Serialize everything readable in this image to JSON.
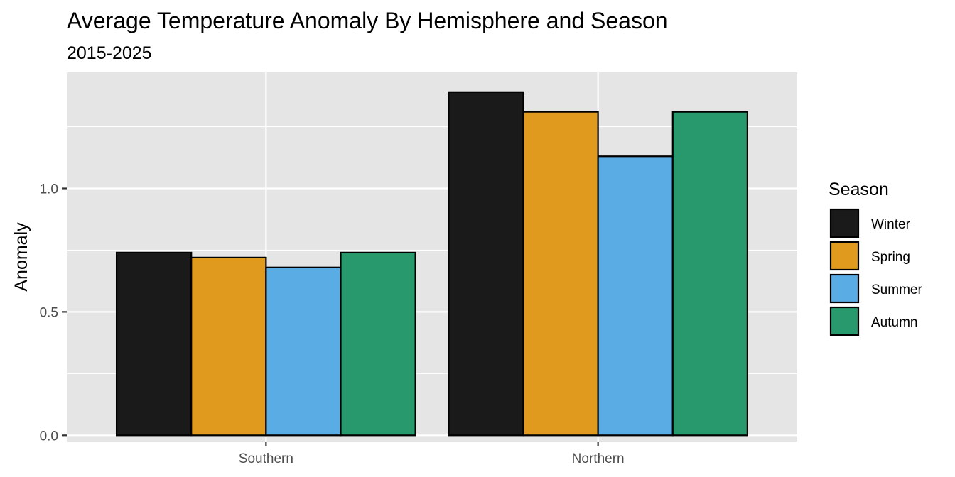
{
  "chart_data": {
    "type": "bar",
    "title": "Average Temperature Anomaly By Hemisphere and Season",
    "subtitle": "2015-2025",
    "xlabel": "",
    "ylabel": "Anomaly",
    "categories": [
      "Southern",
      "Northern"
    ],
    "series": [
      {
        "name": "Winter",
        "color": "#1a1a1a",
        "values": [
          0.74,
          1.39
        ]
      },
      {
        "name": "Spring",
        "color": "#e09a1e",
        "values": [
          0.72,
          1.31
        ]
      },
      {
        "name": "Summer",
        "color": "#5aace4",
        "values": [
          0.68,
          1.13
        ]
      },
      {
        "name": "Autumn",
        "color": "#28996c",
        "values": [
          0.74,
          1.31
        ]
      }
    ],
    "ylim": [
      -0.025,
      1.47
    ],
    "yticks": [
      0.0,
      0.5,
      1.0
    ],
    "ytick_labels": [
      "0.0",
      "0.5",
      "1.0"
    ],
    "legend": {
      "title": "Season",
      "position": "right"
    },
    "grid": true,
    "panel_background": "#e5e5e5",
    "grid_color": "#ffffff"
  }
}
